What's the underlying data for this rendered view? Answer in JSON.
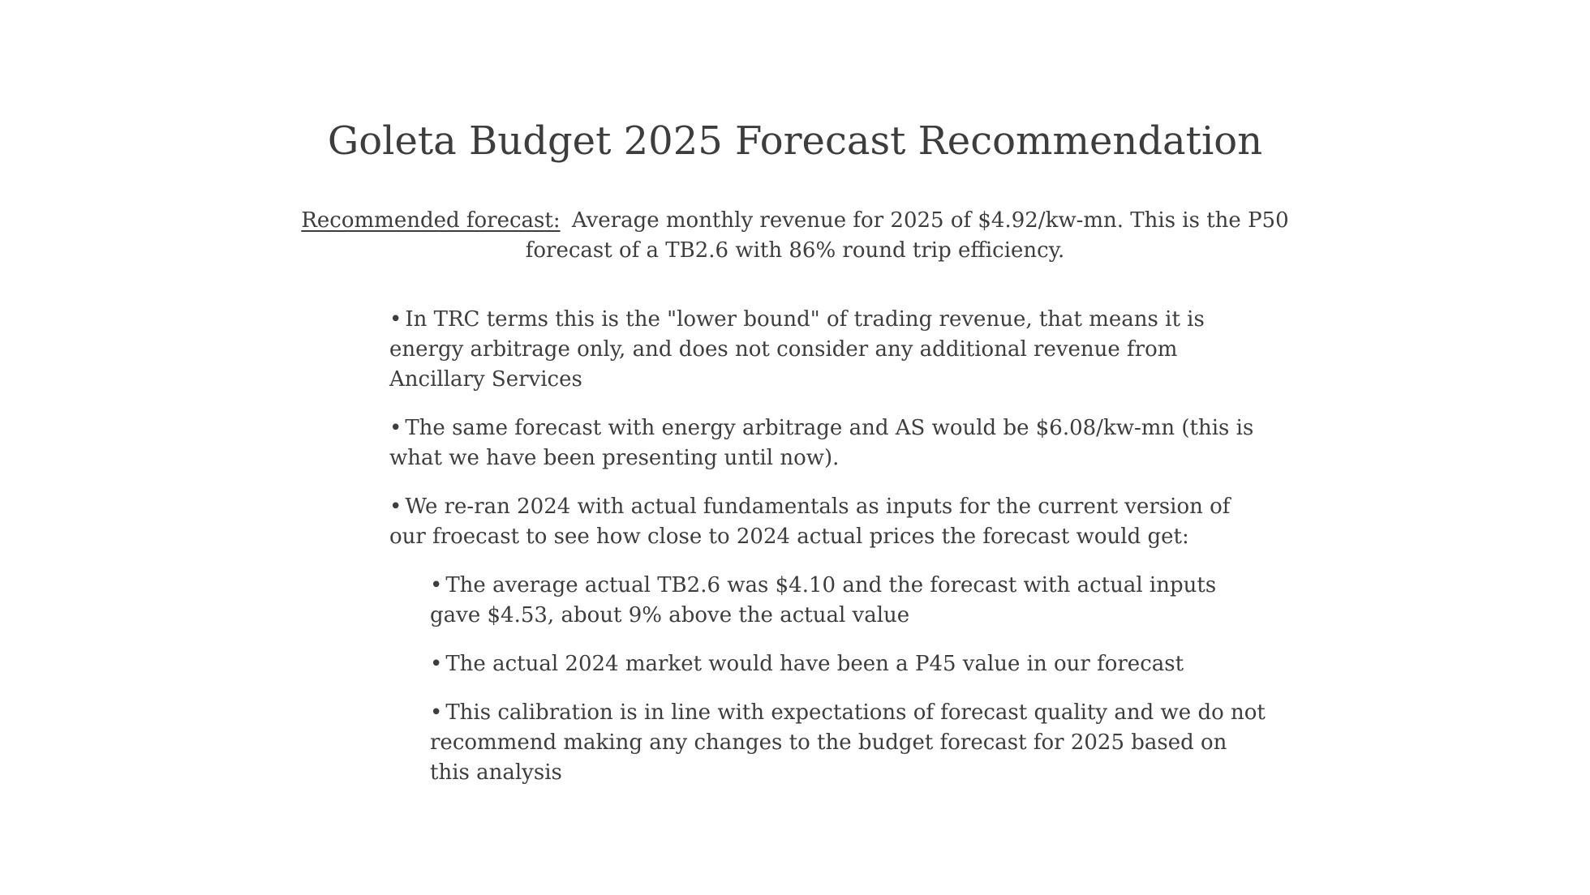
{
  "slide": {
    "title": "Goleta Budget 2025 Forecast Recommendation",
    "recommendation": {
      "label": "Recommended forecast:",
      "text": "Average monthly revenue for 2025 of $4.92/kw-mn. This is the P50 forecast of a TB2.6 with 86% round trip efficiency."
    },
    "bullets": [
      {
        "text": "In TRC terms this is the \"lower bound\" of trading revenue, that means it is energy arbitrage only, and does not consider any additional revenue from Ancillary Services"
      },
      {
        "text": "The same forecast with energy arbitrage and AS would be $6.08/kw-mn (this is what we have been presenting until now)."
      },
      {
        "text": "We re-ran 2024 with actual fundamentals as inputs for the current version of our froecast to see how close to 2024 actual prices the forecast would get:",
        "sub_bullets": [
          {
            "text": "The average actual TB2.6 was $4.10 and the forecast with actual inputs gave $4.53, about 9% above the actual value"
          },
          {
            "text": "The actual 2024 market would have been a P45 value in our forecast"
          },
          {
            "text": "This calibration is in line with expectations of forecast quality and we do not recommend making any changes to the budget forecast for 2025 based on this analysis"
          }
        ]
      }
    ],
    "bullet_symbol": "•"
  }
}
